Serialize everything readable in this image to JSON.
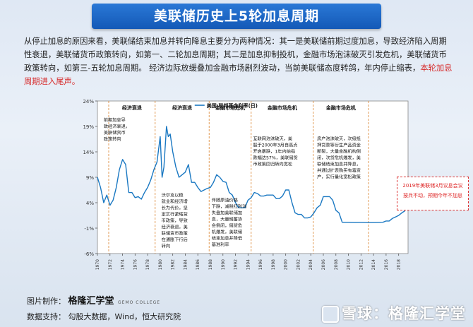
{
  "title": "美联储历史上5轮加息周期",
  "intro": {
    "text": "从停止加息的原因来看，美联储结束加息并转向降息主要分为两种情况：其一是美联储前期过度加息，导致经济陷入周期性衰退，美联储货币政策转向，如第一、二轮加息周期；其二是加息抑制投机，金融市场泡沫破灭引发危机，美联储货币政策转向，如第三-五轮加息周期。 经济边际放缓叠加金融市场剧烈波动，当前美联储态度转鸽，年内停止缩表，",
    "highlight": "本轮加息周期进入尾声。"
  },
  "chart_data": {
    "type": "line",
    "legend": "美国:联邦基金利率(日)",
    "ylim": [
      -3,
      24
    ],
    "yticks": [
      "24%",
      "19%",
      "14%",
      "9%",
      "4%",
      "-1%",
      "-6%"
    ],
    "ytick_values": [
      24,
      19,
      14,
      9,
      4,
      -1,
      -6
    ],
    "xticks": [
      "1970",
      "1972",
      "1974",
      "1976",
      "1978",
      "1980",
      "1982",
      "1984",
      "1986",
      "1988",
      "1990",
      "1992",
      "1994",
      "1996",
      "1998",
      "2000",
      "2002",
      "2004",
      "2006",
      "2008",
      "2010",
      "2012",
      "2014",
      "2016",
      "2018"
    ],
    "series": [
      {
        "name": "美国:联邦基金利率(日)",
        "x": [
          1970,
          1970.5,
          1971,
          1971.5,
          1972,
          1972.5,
          1973,
          1973.5,
          1974,
          1974.5,
          1975,
          1975.5,
          1976,
          1976.5,
          1977,
          1977.5,
          1978,
          1978.5,
          1979,
          1979.5,
          1980,
          1980.3,
          1980.6,
          1981,
          1981.3,
          1981.6,
          1982,
          1982.5,
          1983,
          1983.5,
          1984,
          1984.5,
          1985,
          1985.5,
          1986,
          1986.5,
          1987,
          1987.5,
          1988,
          1988.5,
          1989,
          1989.5,
          1990,
          1990.5,
          1991,
          1991.5,
          1992,
          1992.5,
          1993,
          1993.5,
          1994,
          1994.5,
          1995,
          1995.5,
          1996,
          1996.5,
          1997,
          1997.5,
          1998,
          1998.5,
          1999,
          1999.5,
          2000,
          2000.5,
          2001,
          2001.5,
          2002,
          2002.5,
          2003,
          2003.5,
          2004,
          2004.5,
          2005,
          2005.5,
          2006,
          2006.5,
          2007,
          2007.5,
          2008,
          2008.5,
          2009,
          2010,
          2011,
          2012,
          2013,
          2014,
          2015,
          2015.5,
          2016,
          2016.5,
          2017,
          2017.5,
          2018,
          2018.5,
          2019
        ],
        "values": [
          9,
          7,
          4,
          5.5,
          3.5,
          4.5,
          7,
          10.5,
          12.5,
          11.5,
          6,
          6,
          5,
          5.2,
          4.7,
          6,
          7,
          8.5,
          10.5,
          12,
          17,
          9,
          11,
          19,
          17,
          17.5,
          14,
          11,
          9,
          9.5,
          10,
          11.5,
          8,
          8,
          7,
          6.2,
          6.5,
          6.8,
          7,
          8,
          9.5,
          9,
          8.2,
          8,
          6,
          5.5,
          4,
          3,
          3,
          3,
          4.5,
          5,
          6,
          5.8,
          5.3,
          5.3,
          5.5,
          5.5,
          5.5,
          4.8,
          4.8,
          5.3,
          6.5,
          6.5,
          4,
          2,
          1.7,
          1.7,
          1,
          1,
          1.2,
          2,
          3,
          3.5,
          5.2,
          5.2,
          5.2,
          4.5,
          2.5,
          2,
          0.15,
          0.15,
          0.12,
          0.14,
          0.1,
          0.1,
          0.14,
          0.15,
          0.4,
          0.4,
          0.9,
          1.2,
          1.5,
          2,
          2.4
        ]
      }
    ],
    "phases": [
      "经济衰退",
      "经济衰退",
      "金融市场危机",
      "金融市场危机",
      "金融市场危机"
    ],
    "phase_bounds": [
      1971.8,
      1979.2,
      1987.8,
      1994.5,
      2004.4,
      2013.2
    ],
    "annotations": [
      {
        "text": "前期加息导\n致经济衰退，\n美联储货币\n政策转向",
        "x": 1971,
        "y": 20
      },
      {
        "text": "沃尔克以稳\n就业和经济增\n长为代价，坚\n定实行紧缩货\n币政策，导致\n经济衰退，美\n联储货币政策\n在通胀下行后\n转向",
        "x": 1980.2,
        "y": 5.2
      },
      {
        "text": "伴随原油价格\n下跌，减税红利消\n失叠加美联储加\n息，大量储蓄协\n会倒闭，储贷危\n机爆发，美联储\n结束加息并降低\n基准利率",
        "x": 1988.2,
        "y": 4.2
      },
      {
        "text": "互联网泡沫破灭，美\n股于2000年3月自高点\n开启暴跌，1年内纳指\n跌幅达57%，美联储货\n币政策回归转向宽松",
        "x": 1994.8,
        "y": 16.3
      },
      {
        "text": "房产泡沫破灭，次级抵\n押贷款等衍生产品资金\n断裂，大量金融机构倒\n闭，次贷危机爆发，美\n联储结束加息并降息，\n并通过扩表购买有毒资\n产，实行量化宽松政策",
        "x": 2005,
        "y": 16.3
      }
    ],
    "note": [
      "2019年美联储3月议息会议",
      "按兵不动，预期今年不加息"
    ]
  },
  "footer": {
    "source_label": "图片制作：",
    "brand": "格隆汇学堂",
    "brand_sub": "GEMO COLLEGE",
    "support_label": "数据支持：",
    "support": "勾股大数据，Wind，恒大研究院"
  },
  "watermark": "雪球：格隆汇学堂"
}
